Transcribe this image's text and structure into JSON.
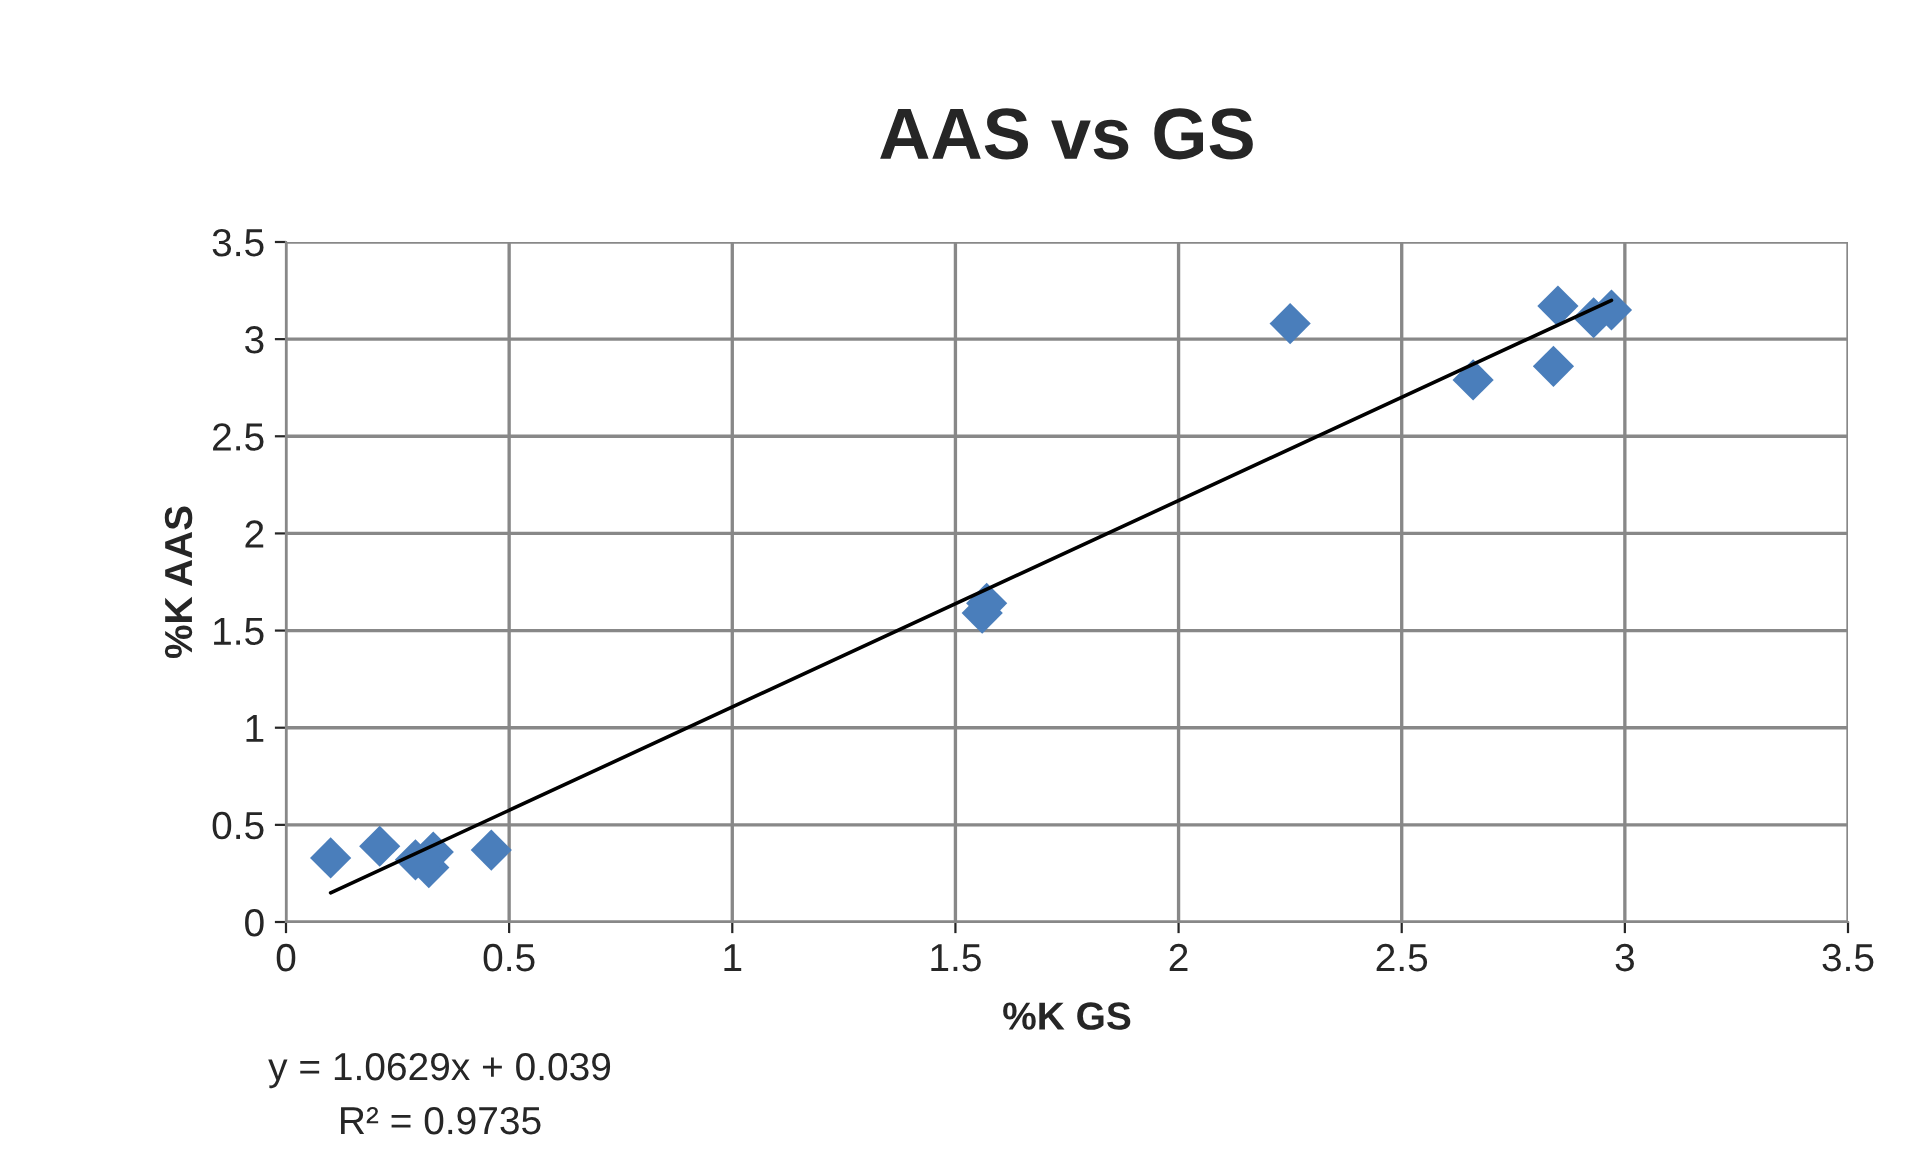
{
  "chart_data": {
    "type": "scatter",
    "title": "AAS vs GS",
    "xlabel": "%K GS",
    "ylabel": "%K AAS",
    "xlim": [
      0,
      3.5
    ],
    "xticks": [
      0,
      0.5,
      1,
      1.5,
      2,
      2.5,
      3,
      3.5
    ],
    "ylim": [
      0,
      3.5
    ],
    "yticks": [
      0,
      0.5,
      1,
      1.5,
      2,
      2.5,
      3,
      3.5
    ],
    "grid": true,
    "series": [
      {
        "type": "scatter",
        "marker": "diamond",
        "color": "#4a7ebb",
        "x": [
          0.1,
          0.21,
          0.29,
          0.32,
          0.33,
          0.46,
          1.56,
          1.57,
          2.25,
          2.66,
          2.84,
          2.85,
          2.93,
          2.97
        ],
        "values": [
          0.33,
          0.39,
          0.32,
          0.28,
          0.36,
          0.37,
          1.59,
          1.64,
          3.08,
          2.79,
          2.86,
          3.17,
          3.11,
          3.15
        ]
      },
      {
        "type": "line",
        "marker": "none",
        "color": "#000000",
        "x": [
          0.1,
          2.97
        ],
        "values": [
          0.15,
          3.2
        ]
      }
    ],
    "annotations": [
      "y = 1.0629x + 0.039",
      "R² = 0.9735"
    ]
  }
}
